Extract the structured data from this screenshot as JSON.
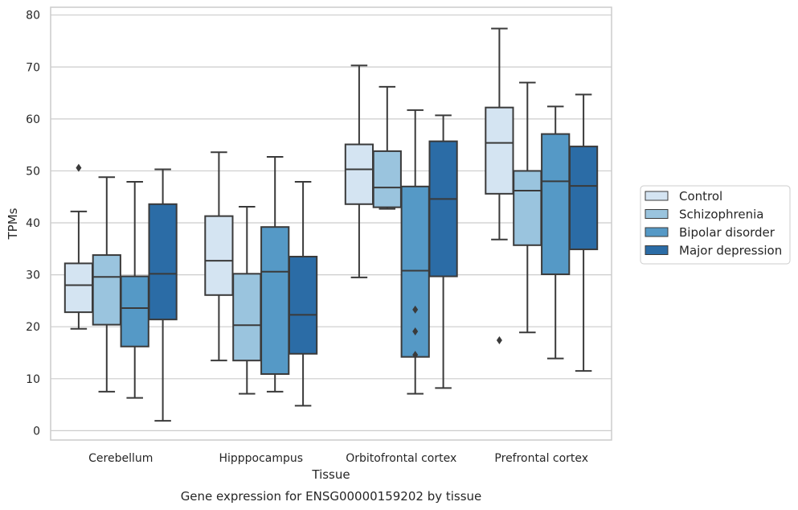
{
  "chart_data": {
    "type": "box",
    "title": "",
    "caption": "Gene expression for ENSG00000159202 by tissue",
    "xlabel": "Tissue",
    "ylabel": "TPMs",
    "ylim": [
      -1.8,
      81.5
    ],
    "yticks": [
      0,
      10,
      20,
      30,
      40,
      50,
      60,
      70,
      80
    ],
    "grid": "horizontal",
    "legend_position": "right",
    "categories": [
      "Cerebellum",
      "Hipppocampus",
      "Orbitofrontal cortex",
      "Prefrontal cortex"
    ],
    "series": [
      {
        "name": "Control",
        "color": "#d4e4f2",
        "boxes": [
          {
            "whisker_low": 19.6,
            "q1": 22.8,
            "median": 28.0,
            "q3": 32.2,
            "whisker_high": 42.2,
            "outliers": [
              50.6
            ]
          },
          {
            "whisker_low": 13.5,
            "q1": 26.1,
            "median": 32.7,
            "q3": 41.3,
            "whisker_high": 53.6,
            "outliers": []
          },
          {
            "whisker_low": 29.5,
            "q1": 43.6,
            "median": 50.3,
            "q3": 55.1,
            "whisker_high": 70.3,
            "outliers": []
          },
          {
            "whisker_low": 36.8,
            "q1": 45.6,
            "median": 55.4,
            "q3": 62.2,
            "whisker_high": 77.4,
            "outliers": [
              17.4
            ]
          }
        ]
      },
      {
        "name": "Schizophrenia",
        "color": "#9ac4de",
        "boxes": [
          {
            "whisker_low": 7.5,
            "q1": 20.4,
            "median": 29.6,
            "q3": 33.8,
            "whisker_high": 48.8,
            "outliers": []
          },
          {
            "whisker_low": 7.1,
            "q1": 13.5,
            "median": 20.3,
            "q3": 30.2,
            "whisker_high": 43.1,
            "outliers": []
          },
          {
            "whisker_low": 42.7,
            "q1": 43.0,
            "median": 46.8,
            "q3": 53.8,
            "whisker_high": 66.2,
            "outliers": []
          },
          {
            "whisker_low": 18.9,
            "q1": 35.7,
            "median": 46.2,
            "q3": 50.0,
            "whisker_high": 67.0,
            "outliers": []
          }
        ]
      },
      {
        "name": "Bipolar disorder",
        "color": "#5599c6",
        "boxes": [
          {
            "whisker_low": 6.3,
            "q1": 16.2,
            "median": 23.6,
            "q3": 29.7,
            "whisker_high": 47.9,
            "outliers": []
          },
          {
            "whisker_low": 7.5,
            "q1": 10.9,
            "median": 30.6,
            "q3": 39.2,
            "whisker_high": 52.7,
            "outliers": []
          },
          {
            "whisker_low": 7.1,
            "q1": 14.2,
            "median": 30.8,
            "q3": 47.0,
            "whisker_high": 61.7,
            "outliers": [
              23.3,
              19.1,
              14.6
            ]
          },
          {
            "whisker_low": 13.9,
            "q1": 30.1,
            "median": 48.0,
            "q3": 57.1,
            "whisker_high": 62.4,
            "outliers": []
          }
        ]
      },
      {
        "name": "Major depression",
        "color": "#2b6ca6",
        "boxes": [
          {
            "whisker_low": 1.9,
            "q1": 21.4,
            "median": 30.2,
            "q3": 43.6,
            "whisker_high": 50.3,
            "outliers": []
          },
          {
            "whisker_low": 4.8,
            "q1": 14.8,
            "median": 22.3,
            "q3": 33.5,
            "whisker_high": 47.9,
            "outliers": []
          },
          {
            "whisker_low": 8.2,
            "q1": 29.7,
            "median": 44.6,
            "q3": 55.7,
            "whisker_high": 60.7,
            "outliers": []
          },
          {
            "whisker_low": 11.5,
            "q1": 34.9,
            "median": 47.1,
            "q3": 54.7,
            "whisker_high": 64.7,
            "outliers": []
          }
        ]
      }
    ]
  }
}
